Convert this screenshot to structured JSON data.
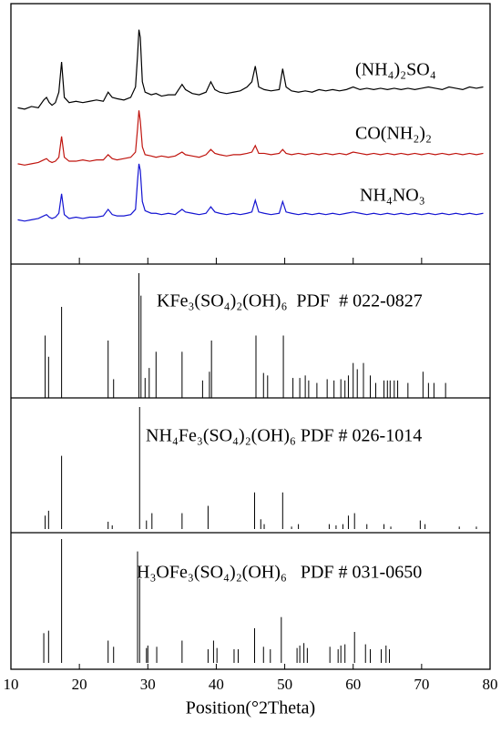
{
  "chart_data": [
    {
      "type": "line",
      "x": [
        11,
        12,
        13,
        14,
        14.8,
        15.2,
        15.6,
        16,
        16.5,
        17,
        17.4,
        17.8,
        18.5,
        19.5,
        20.5,
        21.5,
        22.5,
        23.5,
        24.2,
        24.8,
        25.5,
        26.5,
        27.5,
        28.2,
        28.5,
        28.7,
        28.9,
        29.2,
        29.6,
        30.5,
        31.2,
        32,
        33,
        34,
        35,
        35.5,
        36.5,
        37.5,
        38.5,
        39.2,
        39.8,
        40.5,
        41.5,
        42.5,
        43.5,
        44.5,
        45.2,
        45.7,
        46.2,
        47,
        48,
        49.2,
        49.7,
        50.2,
        51,
        52,
        53,
        54,
        55,
        56,
        57,
        58,
        59,
        60,
        61,
        62,
        63,
        64,
        65,
        66,
        67,
        68,
        69,
        70,
        71,
        72,
        73,
        74,
        75,
        76,
        77,
        78,
        79
      ],
      "xlim": [
        10,
        80
      ],
      "ylim": [
        0,
        100
      ],
      "series": [
        {
          "name": "(NH₄)₂SO₄",
          "color": "#000000",
          "values": [
            60,
            59.5,
            60.5,
            60,
            63,
            64,
            62,
            61,
            62,
            66,
            77.6,
            64,
            62,
            62.5,
            62,
            62.5,
            63,
            62.5,
            66,
            64,
            63.5,
            63,
            64,
            68,
            80,
            90,
            87,
            70,
            66,
            65,
            65.5,
            64.5,
            65,
            65,
            69,
            67,
            65.5,
            65,
            66,
            70,
            67,
            66,
            65.5,
            66,
            66.5,
            68,
            70,
            76,
            68,
            67,
            66.5,
            67,
            75,
            68,
            66.5,
            66,
            66.5,
            66,
            67,
            66.5,
            67,
            66.5,
            67,
            68,
            67,
            67.5,
            67,
            67.5,
            67,
            67.5,
            67,
            67.5,
            67,
            67.5,
            68,
            67.5,
            67,
            68,
            67.5,
            67,
            68,
            67.5,
            68
          ]
        },
        {
          "name": "CO(NH₂)₂",
          "color": "#c0150f",
          "values": [
            38.5,
            38,
            38.5,
            39,
            40,
            40.5,
            39.5,
            39,
            39.5,
            41,
            49,
            41,
            39.5,
            39.5,
            40,
            39.5,
            40,
            40,
            42,
            40.5,
            40,
            40.5,
            41,
            43,
            52,
            59,
            55,
            45,
            42,
            41.5,
            41,
            41.5,
            41,
            41.5,
            43,
            42,
            41.5,
            41,
            42,
            44,
            42.5,
            42,
            41.5,
            42,
            42,
            42.5,
            43,
            45.5,
            42.5,
            42.5,
            42,
            42.5,
            44,
            42.5,
            42,
            42.5,
            42,
            42.5,
            42,
            42.5,
            42,
            42.5,
            42,
            43,
            42.5,
            42,
            42.5,
            42,
            42.5,
            42,
            42.5,
            42,
            42.5,
            42,
            42.5,
            42,
            42.5,
            42,
            42.5,
            42,
            42.5,
            42,
            42.5
          ]
        },
        {
          "name": "NH₄NO₃",
          "color": "#1414d2",
          "values": [
            17,
            16.5,
            17,
            17.5,
            18.5,
            19,
            18,
            17.5,
            18,
            19.5,
            27,
            19,
            17.5,
            18,
            17.5,
            18,
            18,
            18.5,
            21,
            19,
            18.5,
            18.5,
            19,
            21,
            32,
            38.5,
            36,
            24,
            20.5,
            19.5,
            19.5,
            19,
            19.5,
            19,
            21,
            20,
            19.5,
            19,
            19.5,
            22,
            20,
            19.5,
            19,
            19.5,
            19,
            19.5,
            20,
            24.5,
            20,
            19.5,
            19,
            19.5,
            24,
            20,
            19.5,
            19,
            19.5,
            19,
            19.5,
            19,
            19.5,
            19,
            19.5,
            20,
            19.5,
            19,
            19.5,
            19,
            19.5,
            19,
            19.5,
            19,
            19.5,
            19,
            19.5,
            19,
            19.5,
            19,
            19.5,
            19,
            19.5,
            19,
            19.5
          ]
        }
      ]
    },
    {
      "type": "stick",
      "title": "KFe₃(SO₄)₂(OH)₆  PDF  # 022-0827",
      "xlim": [
        10,
        80
      ],
      "ylim": [
        0,
        100
      ],
      "x": [
        15.0,
        15.5,
        17.4,
        24.2,
        25.0,
        28.7,
        29.0,
        29.6,
        30.2,
        31.2,
        35.0,
        38.0,
        39.0,
        39.3,
        45.8,
        46.9,
        47.5,
        49.8,
        51.2,
        52.2,
        53.0,
        53.5,
        54.7,
        56.2,
        57.2,
        58.2,
        58.8,
        59.3,
        60.0,
        60.6,
        61.5,
        62.5,
        63.3,
        64.5,
        65.0,
        65.4,
        66.0,
        66.5,
        68.0,
        70.2,
        71.0,
        71.8,
        73.5
      ],
      "values": [
        50,
        33,
        73,
        46,
        15,
        100,
        82,
        16,
        24,
        37,
        37,
        14,
        21,
        46,
        50,
        20,
        18,
        50,
        16,
        16,
        18,
        14,
        12,
        15,
        14,
        15,
        14,
        18,
        28,
        23,
        28,
        18,
        12,
        14,
        14,
        14,
        14,
        14,
        12,
        21,
        12,
        12,
        12
      ]
    },
    {
      "type": "stick",
      "title": "NH₄Fe₃(SO₄)₂(OH)₆ PDF # 026-1014",
      "xlim": [
        10,
        80
      ],
      "ylim": [
        0,
        100
      ],
      "x": [
        15.0,
        15.5,
        17.4,
        24.2,
        24.8,
        28.8,
        29.8,
        30.6,
        35.0,
        38.8,
        45.6,
        46.5,
        47.0,
        49.7,
        51.0,
        52.0,
        56.5,
        57.5,
        58.5,
        59.3,
        60.2,
        62.0,
        64.5,
        65.5,
        69.8,
        70.5,
        75.5,
        78.0
      ],
      "values": [
        11,
        15,
        60,
        6,
        3,
        100,
        7,
        13,
        13,
        19,
        30,
        8,
        4,
        30,
        2,
        4,
        4,
        3,
        4,
        11,
        13,
        4,
        4,
        2,
        7,
        4,
        2,
        2
      ]
    },
    {
      "type": "stick",
      "title": "H₃OFe₃(SO₄)₂(OH)₆   PDF # 031-0650",
      "xlim": [
        10,
        80
      ],
      "ylim": [
        0,
        100
      ],
      "x": [
        14.8,
        15.5,
        17.4,
        24.2,
        25.0,
        28.5,
        28.8,
        29.8,
        30.0,
        31.3,
        35.0,
        38.8,
        39.6,
        40.1,
        42.6,
        43.2,
        45.6,
        46.9,
        47.9,
        49.5,
        51.8,
        52.2,
        52.8,
        53.3,
        56.6,
        57.8,
        58.2,
        58.8,
        60.2,
        61.8,
        62.5,
        64.1,
        64.8,
        65.3
      ],
      "values": [
        24,
        26,
        100,
        18,
        13,
        90,
        68,
        12,
        14,
        13,
        18,
        11,
        18,
        12,
        11,
        11,
        28,
        13,
        11,
        37,
        12,
        14,
        16,
        12,
        13,
        11,
        14,
        15,
        25,
        15,
        11,
        11,
        14,
        11
      ],
      "xticks": [
        10,
        20,
        30,
        40,
        50,
        60,
        70,
        80
      ],
      "xlabel": "Position(°2Theta)"
    }
  ]
}
